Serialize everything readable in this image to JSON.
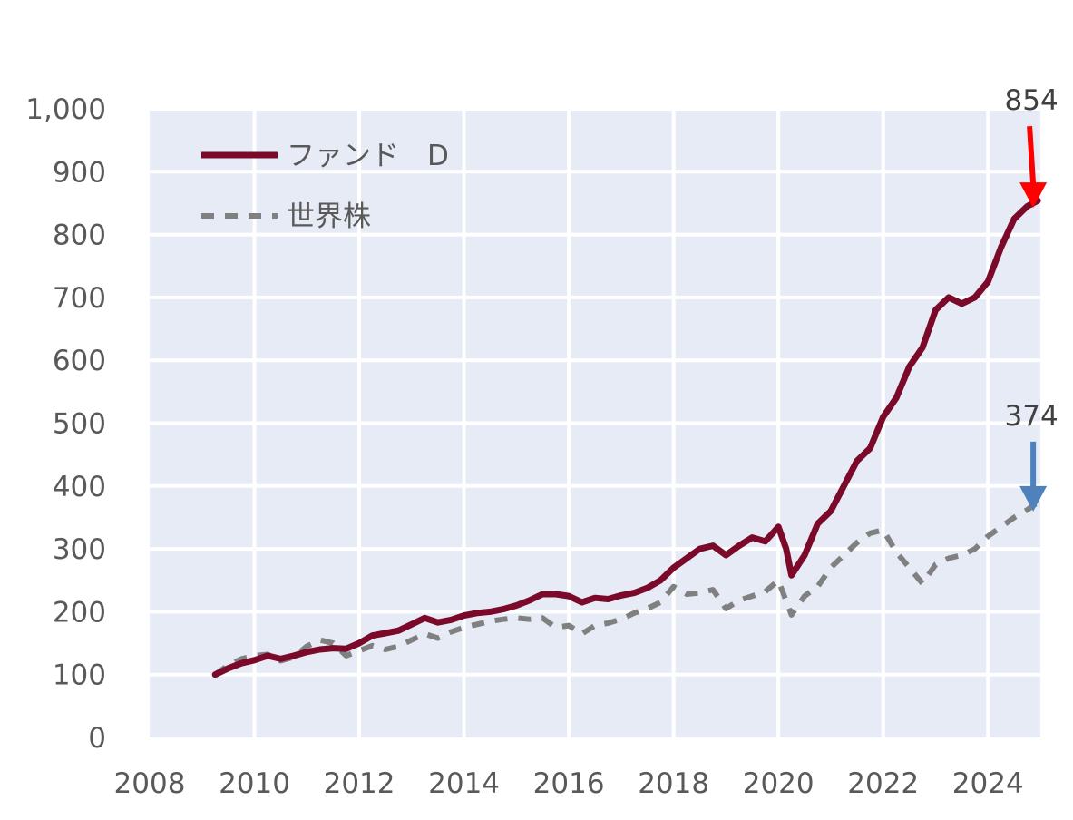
{
  "chart_data": {
    "type": "line",
    "x_ticks": [
      "2008",
      "2010",
      "2012",
      "2014",
      "2016",
      "2018",
      "2020",
      "2022",
      "2024"
    ],
    "y_ticks": [
      "0",
      "100",
      "200",
      "300",
      "400",
      "500",
      "600",
      "700",
      "800",
      "900",
      "1,000"
    ],
    "xlim": [
      2008,
      2025
    ],
    "ylim": [
      0,
      1000
    ],
    "grid": true,
    "legend_position": "top-left",
    "series": [
      {
        "name": "ファンド　D",
        "color": "#7b0a2a",
        "style": "solid",
        "points": [
          [
            2009.25,
            100
          ],
          [
            2009.5,
            110
          ],
          [
            2009.75,
            118
          ],
          [
            2010.0,
            123
          ],
          [
            2010.25,
            130
          ],
          [
            2010.5,
            125
          ],
          [
            2010.75,
            130
          ],
          [
            2011.0,
            136
          ],
          [
            2011.25,
            140
          ],
          [
            2011.5,
            142
          ],
          [
            2011.75,
            141
          ],
          [
            2012.0,
            150
          ],
          [
            2012.25,
            162
          ],
          [
            2012.5,
            166
          ],
          [
            2012.75,
            170
          ],
          [
            2013.0,
            180
          ],
          [
            2013.25,
            190
          ],
          [
            2013.5,
            183
          ],
          [
            2013.75,
            187
          ],
          [
            2014.0,
            194
          ],
          [
            2014.25,
            198
          ],
          [
            2014.5,
            200
          ],
          [
            2014.75,
            204
          ],
          [
            2015.0,
            210
          ],
          [
            2015.25,
            218
          ],
          [
            2015.5,
            228
          ],
          [
            2015.75,
            228
          ],
          [
            2016.0,
            225
          ],
          [
            2016.25,
            215
          ],
          [
            2016.5,
            222
          ],
          [
            2016.75,
            220
          ],
          [
            2017.0,
            226
          ],
          [
            2017.25,
            230
          ],
          [
            2017.5,
            238
          ],
          [
            2017.75,
            250
          ],
          [
            2018.0,
            270
          ],
          [
            2018.25,
            285
          ],
          [
            2018.5,
            300
          ],
          [
            2018.75,
            305
          ],
          [
            2019.0,
            290
          ],
          [
            2019.25,
            305
          ],
          [
            2019.5,
            318
          ],
          [
            2019.75,
            312
          ],
          [
            2020.0,
            335
          ],
          [
            2020.15,
            300
          ],
          [
            2020.25,
            258
          ],
          [
            2020.5,
            290
          ],
          [
            2020.75,
            340
          ],
          [
            2021.0,
            360
          ],
          [
            2021.25,
            400
          ],
          [
            2021.5,
            440
          ],
          [
            2021.75,
            460
          ],
          [
            2022.0,
            510
          ],
          [
            2022.25,
            540
          ],
          [
            2022.5,
            590
          ],
          [
            2022.75,
            620
          ],
          [
            2023.0,
            680
          ],
          [
            2023.25,
            700
          ],
          [
            2023.5,
            690
          ],
          [
            2023.75,
            700
          ],
          [
            2024.0,
            725
          ],
          [
            2024.25,
            780
          ],
          [
            2024.5,
            825
          ],
          [
            2024.75,
            845
          ],
          [
            2024.95,
            854
          ]
        ]
      },
      {
        "name": "世界株",
        "color": "#808080",
        "style": "dashed",
        "points": [
          [
            2009.25,
            100
          ],
          [
            2009.5,
            115
          ],
          [
            2009.75,
            125
          ],
          [
            2010.0,
            130
          ],
          [
            2010.25,
            132
          ],
          [
            2010.5,
            122
          ],
          [
            2010.75,
            128
          ],
          [
            2011.0,
            145
          ],
          [
            2011.25,
            155
          ],
          [
            2011.5,
            150
          ],
          [
            2011.75,
            130
          ],
          [
            2012.0,
            138
          ],
          [
            2012.25,
            146
          ],
          [
            2012.5,
            140
          ],
          [
            2012.75,
            145
          ],
          [
            2013.0,
            155
          ],
          [
            2013.25,
            165
          ],
          [
            2013.5,
            158
          ],
          [
            2013.75,
            168
          ],
          [
            2014.0,
            175
          ],
          [
            2014.25,
            180
          ],
          [
            2014.5,
            185
          ],
          [
            2014.75,
            188
          ],
          [
            2015.0,
            190
          ],
          [
            2015.25,
            188
          ],
          [
            2015.5,
            190
          ],
          [
            2015.75,
            175
          ],
          [
            2016.0,
            178
          ],
          [
            2016.25,
            165
          ],
          [
            2016.5,
            178
          ],
          [
            2016.75,
            182
          ],
          [
            2017.0,
            188
          ],
          [
            2017.25,
            198
          ],
          [
            2017.5,
            205
          ],
          [
            2017.75,
            215
          ],
          [
            2018.0,
            240
          ],
          [
            2018.25,
            228
          ],
          [
            2018.5,
            230
          ],
          [
            2018.75,
            235
          ],
          [
            2019.0,
            205
          ],
          [
            2019.25,
            218
          ],
          [
            2019.5,
            225
          ],
          [
            2019.75,
            232
          ],
          [
            2020.0,
            250
          ],
          [
            2020.25,
            195
          ],
          [
            2020.5,
            225
          ],
          [
            2020.75,
            240
          ],
          [
            2021.0,
            270
          ],
          [
            2021.25,
            290
          ],
          [
            2021.5,
            310
          ],
          [
            2021.75,
            325
          ],
          [
            2022.0,
            330
          ],
          [
            2022.25,
            295
          ],
          [
            2022.5,
            270
          ],
          [
            2022.75,
            245
          ],
          [
            2023.0,
            275
          ],
          [
            2023.25,
            285
          ],
          [
            2023.5,
            290
          ],
          [
            2023.75,
            300
          ],
          [
            2024.0,
            320
          ],
          [
            2024.25,
            335
          ],
          [
            2024.5,
            350
          ],
          [
            2024.75,
            362
          ],
          [
            2024.95,
            374
          ]
        ]
      }
    ],
    "annotations": [
      {
        "label": "854",
        "value": 854,
        "x": 2024.95,
        "arrow_color": "#ff0000",
        "series": "ファンド　D"
      },
      {
        "label": "374",
        "value": 374,
        "x": 2024.95,
        "arrow_color": "#4f81bd",
        "series": "世界株"
      }
    ],
    "plot_background": "#e6ebf5",
    "grid_color": "#ffffff"
  }
}
